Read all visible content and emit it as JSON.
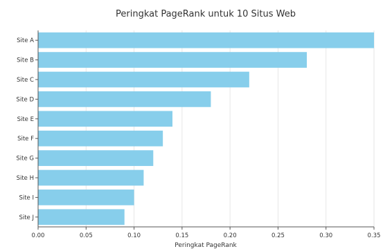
{
  "chart_data": {
    "type": "bar",
    "orientation": "horizontal",
    "title": "Peringkat PageRank untuk 10 Situs Web",
    "xlabel": "Peringkat PageRank",
    "ylabel": "",
    "categories": [
      "Site A",
      "Site B",
      "Site C",
      "Site D",
      "Site E",
      "Site F",
      "Site G",
      "Site H",
      "Site I",
      "Site J"
    ],
    "values": [
      0.35,
      0.28,
      0.22,
      0.18,
      0.14,
      0.13,
      0.12,
      0.11,
      0.1,
      0.09
    ],
    "xlim": [
      0,
      0.35
    ],
    "xticks": [
      0.0,
      0.05,
      0.1,
      0.15,
      0.2,
      0.25,
      0.3,
      0.35
    ],
    "xtick_labels": [
      "0.00",
      "0.05",
      "0.10",
      "0.15",
      "0.20",
      "0.25",
      "0.30",
      "0.35"
    ],
    "grid": "vertical",
    "legend": "none",
    "bar_color": "#87ceeb",
    "grid_color": "#e6e6e6",
    "axis_color": "#555555"
  }
}
